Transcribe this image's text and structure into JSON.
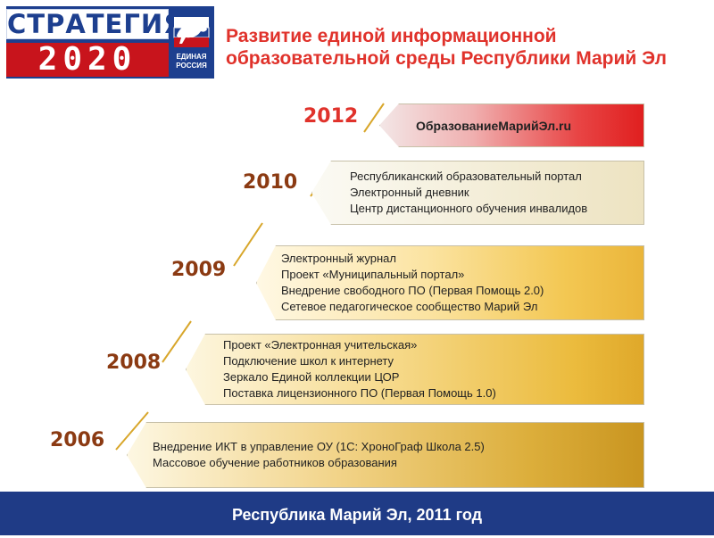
{
  "colors": {
    "title_red": "#e0322b",
    "year_red": "#e0322b",
    "year_dark": "#8b3a12",
    "accent_gold": "#d8a62a",
    "footer_blue": "#1f3b86",
    "logo_blue": "#1d3f8f",
    "logo_red": "#c8141c"
  },
  "logo": {
    "word": "СТРАТЕГИЯ",
    "year": "2020",
    "emblem_icon": "bear-icon",
    "emblem_line1": "ЕДИНАЯ",
    "emblem_line2": "РОССИЯ"
  },
  "header": {
    "title_line1": "Развитие единой информационной",
    "title_line2": "образовательной среды Республики Марий Эл"
  },
  "timeline": [
    {
      "year": "2012",
      "style": "red",
      "lines": [
        "ОбразованиеМарийЭл.ru"
      ]
    },
    {
      "year": "2010",
      "style": "pale",
      "lines": [
        "Республиканский образовательный портал",
        "Электронный дневник",
        "Центр  дистанционного обучения инвалидов"
      ]
    },
    {
      "year": "2009",
      "style": "light-gold",
      "lines": [
        "Электронный журнал",
        "Проект «Муниципальный портал»",
        "Внедрение свободного ПО (Первая Помощь 2.0)",
        "Сетевое педагогическое сообщество Марий Эл"
      ]
    },
    {
      "year": "2008",
      "style": "gold",
      "lines": [
        "Проект «Электронная учительская»",
        "Подключение школ к интернету",
        "Зеркало Единой коллекции ЦОР",
        "Поставка лицензионного ПО (Первая Помощь 1.0)"
      ]
    },
    {
      "year": "2006",
      "style": "dark-gold",
      "lines": [
        "Внедрение ИКТ в управление ОУ (1С: ХроноГраф Школа 2.5)",
        "Массовое обучение работников образования"
      ]
    }
  ],
  "footer": {
    "text": "Республика Марий Эл, 2011 год"
  }
}
